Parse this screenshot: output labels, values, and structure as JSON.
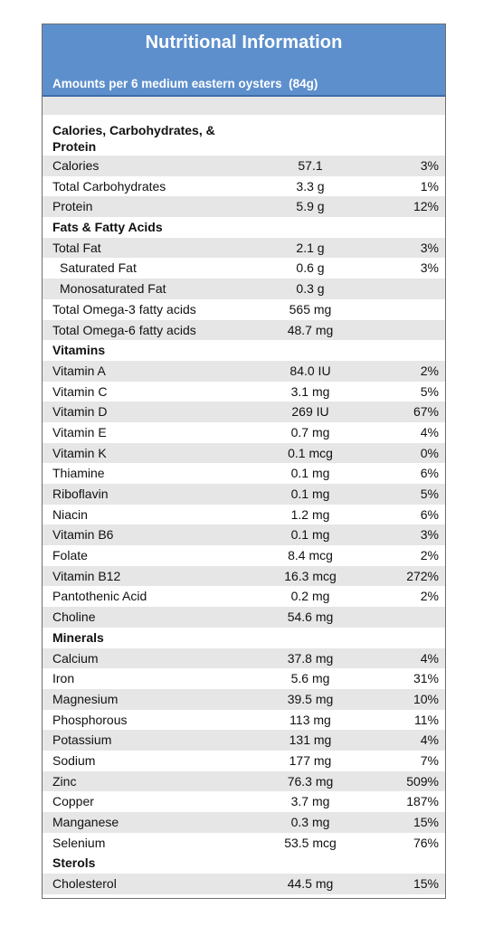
{
  "header": {
    "title": "Nutritional Information",
    "subtitle": "Amounts per 6 medium eastern oysters  (84g)"
  },
  "sections": [
    {
      "title": "Calories, Carbohydrates, & Protein",
      "rows": [
        {
          "name": "Calories",
          "amount": "57.1",
          "pct": "3%"
        },
        {
          "name": "Total Carbohydrates",
          "amount": "3.3 g",
          "pct": "1%"
        },
        {
          "name": "Protein",
          "amount": "5.9 g",
          "pct": "12%"
        }
      ]
    },
    {
      "title": "Fats & Fatty Acids",
      "rows": [
        {
          "name": "Total Fat",
          "amount": "2.1 g",
          "pct": "3%"
        },
        {
          "name": "Saturated Fat",
          "amount": "0.6 g",
          "pct": "3%"
        },
        {
          "name": "Monosaturated Fat",
          "amount": "0.3 g",
          "pct": ""
        },
        {
          "name": "Total Omega-3 fatty acids",
          "amount": "565 mg",
          "pct": ""
        },
        {
          "name": "Total Omega-6 fatty acids",
          "amount": "48.7 mg",
          "pct": ""
        }
      ]
    },
    {
      "title": "Vitamins",
      "rows": [
        {
          "name": "Vitamin A",
          "amount": "84.0 IU",
          "pct": "2%"
        },
        {
          "name": "Vitamin C",
          "amount": "3.1 mg",
          "pct": "5%"
        },
        {
          "name": "Vitamin D",
          "amount": "269 IU",
          "pct": "67%"
        },
        {
          "name": "Vitamin E",
          "amount": "0.7 mg",
          "pct": "4%"
        },
        {
          "name": "Vitamin K",
          "amount": "0.1 mcg",
          "pct": "0%"
        },
        {
          "name": "Thiamine",
          "amount": "0.1 mg",
          "pct": "6%"
        },
        {
          "name": "Riboflavin",
          "amount": "0.1 mg",
          "pct": "5%"
        },
        {
          "name": "Niacin",
          "amount": "1.2 mg",
          "pct": "6%"
        },
        {
          "name": "Vitamin B6",
          "amount": "0.1 mg",
          "pct": "3%"
        },
        {
          "name": "Folate",
          "amount": "8.4 mcg",
          "pct": "2%"
        },
        {
          "name": "Vitamin B12",
          "amount": "16.3 mcg",
          "pct": "272%"
        },
        {
          "name": "Pantothenic Acid",
          "amount": "0.2 mg",
          "pct": "2%"
        },
        {
          "name": "Choline",
          "amount": "54.6 mg",
          "pct": ""
        }
      ]
    },
    {
      "title": "Minerals",
      "rows": [
        {
          "name": "Calcium",
          "amount": "37.8 mg",
          "pct": "4%"
        },
        {
          "name": "Iron",
          "amount": "5.6 mg",
          "pct": "31%"
        },
        {
          "name": "Magnesium",
          "amount": "39.5 mg",
          "pct": "10%"
        },
        {
          "name": "Phosphorous",
          "amount": "113 mg",
          "pct": "11%"
        },
        {
          "name": "Potassium",
          "amount": "131 mg",
          "pct": "4%"
        },
        {
          "name": "Sodium",
          "amount": "177 mg",
          "pct": "7%"
        },
        {
          "name": "Zinc",
          "amount": "76.3 mg",
          "pct": "509%"
        },
        {
          "name": "Copper",
          "amount": "3.7 mg",
          "pct": "187%"
        },
        {
          "name": "Manganese",
          "amount": "0.3 mg",
          "pct": "15%"
        },
        {
          "name": "Selenium",
          "amount": "53.5 mcg",
          "pct": "76%"
        }
      ]
    },
    {
      "title": "Sterols",
      "rows": [
        {
          "name": "Cholesterol",
          "amount": "44.5 mg",
          "pct": "15%"
        }
      ]
    }
  ],
  "colors": {
    "header_bg": "#5d8fcd",
    "row_shade": "#e6e6e6"
  }
}
